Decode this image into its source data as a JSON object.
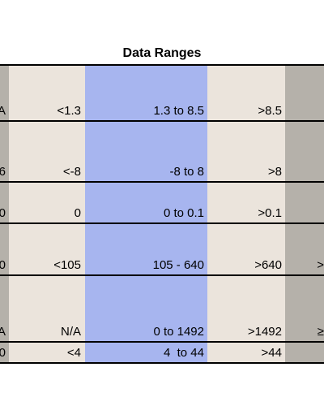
{
  "table": {
    "title": "Data Ranges",
    "colors": {
      "gray_column": "#b5b1aa",
      "beige_column": "#ebe4dc",
      "blue_column": "#a7b5ef",
      "border": "#000000"
    },
    "rows": [
      {
        "c0": "A",
        "c1": "<1.3",
        "c2": "1.3 to 8.5",
        "c3": ">8.5",
        "c4": ""
      },
      {
        "c0": "6",
        "c1": "<-8",
        "c2": "-8 to 8",
        "c3": ">8",
        "c4": ""
      },
      {
        "c0": "0",
        "c1": "0",
        "c2": "0 to 0.1",
        "c3": ">0.1",
        "c4": ""
      },
      {
        "c0": "0",
        "c1": "<105",
        "c2": "105 - 640",
        "c3": ">640",
        "c4": ">"
      },
      {
        "c0": "A",
        "c1": "N/A",
        "c2": "0 to 1492",
        "c3": ">1492",
        "c4": "≥"
      },
      {
        "c0": "0",
        "c1": "<4",
        "c2": "4  to 44",
        "c3": ">44",
        "c4": ""
      }
    ]
  }
}
